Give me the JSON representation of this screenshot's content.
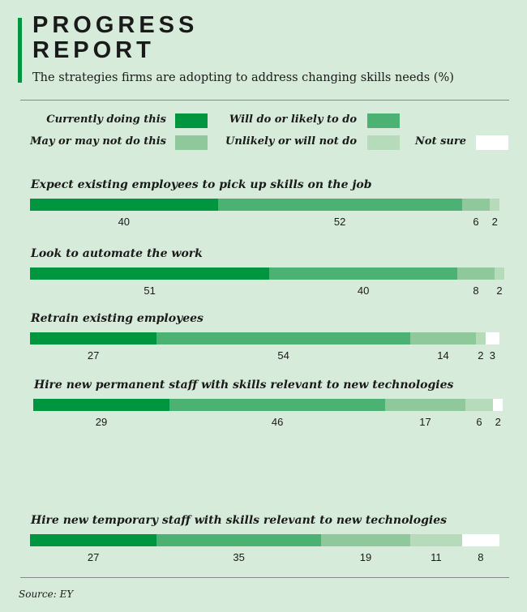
{
  "title_line1": "PROGRESS",
  "title_line2": "REPORT",
  "subtitle": "The strategies firms are adopting to address changing skills needs (%)",
  "source": "Source: EY",
  "chart_data": {
    "type": "bar",
    "orientation": "horizontal-stacked",
    "legend": [
      {
        "label": "Currently doing this",
        "color": "#009640"
      },
      {
        "label": "Will do or likely to do",
        "color": "#4bb273"
      },
      {
        "label": "May or may not do this",
        "color": "#8fc99b"
      },
      {
        "label": "Unlikely or will not do",
        "color": "#b5dbbb"
      },
      {
        "label": "Not sure",
        "color": "#ffffff"
      }
    ],
    "categories": [
      "Expect existing employees to pick up skills on the job",
      "Look to automate the work",
      "Retrain existing employees",
      "Hire new permanent staff with skills relevant to new technologies",
      "Hire new temporary staff with skills relevant to new technologies"
    ],
    "values": [
      [
        40,
        52,
        6,
        2,
        0
      ],
      [
        51,
        40,
        8,
        2,
        0
      ],
      [
        27,
        54,
        14,
        2,
        3
      ],
      [
        29,
        46,
        17,
        6,
        2
      ],
      [
        27,
        35,
        19,
        11,
        8
      ]
    ]
  }
}
